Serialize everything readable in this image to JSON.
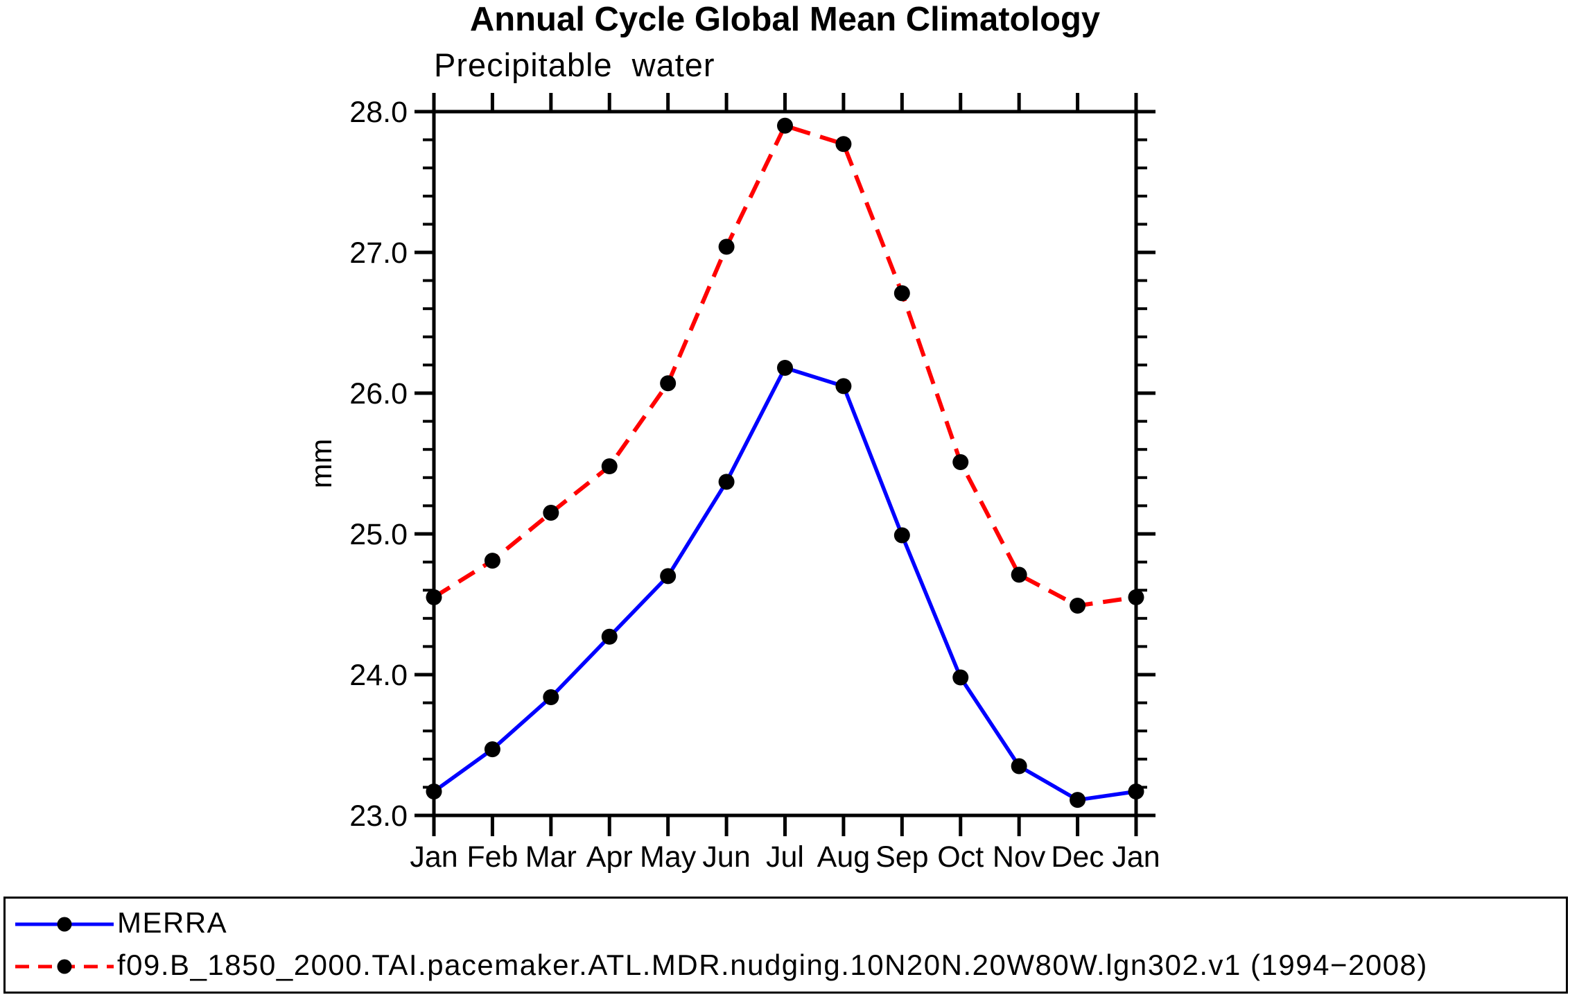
{
  "chart_data": {
    "type": "line",
    "title": "Annual Cycle Global Mean Climatology",
    "subtitle": "Precipitable water",
    "ylabel": "mm",
    "categories": [
      "Jan",
      "Feb",
      "Mar",
      "Apr",
      "May",
      "Jun",
      "Jul",
      "Aug",
      "Sep",
      "Oct",
      "Nov",
      "Dec",
      "Jan"
    ],
    "series": [
      {
        "name": "MERRA",
        "color": "#0000ff",
        "line_style": "solid",
        "marker": "circle",
        "marker_color": "#000000",
        "values": [
          23.17,
          23.47,
          23.84,
          24.27,
          24.7,
          25.37,
          26.18,
          26.05,
          24.99,
          23.98,
          23.35,
          23.11,
          23.17
        ]
      },
      {
        "name": "f09.B_1850_2000.TAI.pacemaker.ATL.MDR.nudging.10N20N.20W80W.lgn302.v1 (1994−2008)",
        "color": "#ff0000",
        "line_style": "dashed",
        "marker": "circle",
        "marker_color": "#000000",
        "values": [
          24.55,
          24.81,
          25.15,
          25.48,
          26.07,
          27.04,
          27.9,
          27.77,
          26.71,
          25.51,
          24.71,
          24.49,
          24.55
        ]
      }
    ],
    "ylim": [
      23.0,
      28.0
    ],
    "ytick_major": 1.0,
    "ytick_minor": 0.2,
    "ytick_labels": [
      "23.0",
      "24.0",
      "25.0",
      "26.0",
      "27.0",
      "28.0"
    ],
    "grid": false,
    "legend_position": "bottom",
    "axis_color": "#000000",
    "background_color": "#ffffff"
  }
}
